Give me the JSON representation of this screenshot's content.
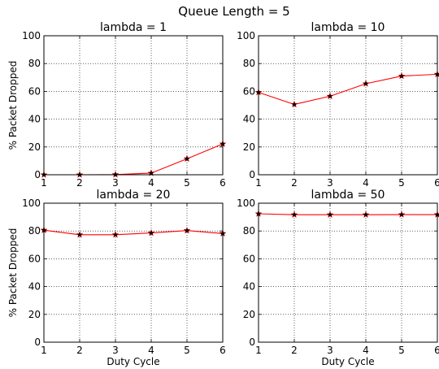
{
  "figure": {
    "title": "Queue Length = 5",
    "colors": {
      "line": "#ff0000",
      "marker": "#000000",
      "grid": "#000000"
    }
  },
  "chart_data": [
    {
      "type": "line",
      "title": "lambda = 1",
      "xlabel": "",
      "ylabel": "% Packet Dropped",
      "x": [
        1,
        2,
        3,
        4,
        5,
        6
      ],
      "series": [
        {
          "values": [
            0,
            0,
            0.1,
            1.2,
            11.5,
            22.2
          ]
        }
      ],
      "xlim": [
        1,
        6
      ],
      "ylim": [
        0,
        100
      ],
      "xticks": [
        "1",
        "2",
        "3",
        "4",
        "5",
        "6"
      ],
      "yticks": [
        "0",
        "20",
        "40",
        "60",
        "80",
        "100"
      ],
      "grid": true
    },
    {
      "type": "line",
      "title": "lambda = 10",
      "xlabel": "",
      "ylabel": "",
      "x": [
        1,
        2,
        3,
        4,
        5,
        6
      ],
      "series": [
        {
          "values": [
            59.3,
            50.6,
            56.5,
            65.5,
            71.0,
            72.3
          ]
        }
      ],
      "xlim": [
        1,
        6
      ],
      "ylim": [
        0,
        100
      ],
      "xticks": [
        "1",
        "2",
        "3",
        "4",
        "5",
        "6"
      ],
      "yticks": [
        "0",
        "20",
        "40",
        "60",
        "80",
        "100"
      ],
      "grid": true
    },
    {
      "type": "line",
      "title": "lambda = 20",
      "xlabel": "Duty Cycle",
      "ylabel": "% Packet Dropped",
      "x": [
        1,
        2,
        3,
        4,
        5,
        6
      ],
      "series": [
        {
          "values": [
            80.6,
            77.3,
            77.3,
            78.6,
            80.3,
            78.2
          ]
        }
      ],
      "xlim": [
        1,
        6
      ],
      "ylim": [
        0,
        100
      ],
      "xticks": [
        "1",
        "2",
        "3",
        "4",
        "5",
        "6"
      ],
      "yticks": [
        "0",
        "20",
        "40",
        "60",
        "80",
        "100"
      ],
      "grid": true
    },
    {
      "type": "line",
      "title": "lambda = 50",
      "xlabel": "Duty Cycle",
      "ylabel": "",
      "x": [
        1,
        2,
        3,
        4,
        5,
        6
      ],
      "series": [
        {
          "values": [
            92.4,
            91.7,
            91.7,
            91.7,
            91.8,
            91.8
          ]
        }
      ],
      "xlim": [
        1,
        6
      ],
      "ylim": [
        0,
        100
      ],
      "xticks": [
        "1",
        "2",
        "3",
        "4",
        "5",
        "6"
      ],
      "yticks": [
        "0",
        "20",
        "40",
        "60",
        "80",
        "100"
      ],
      "grid": true
    }
  ]
}
